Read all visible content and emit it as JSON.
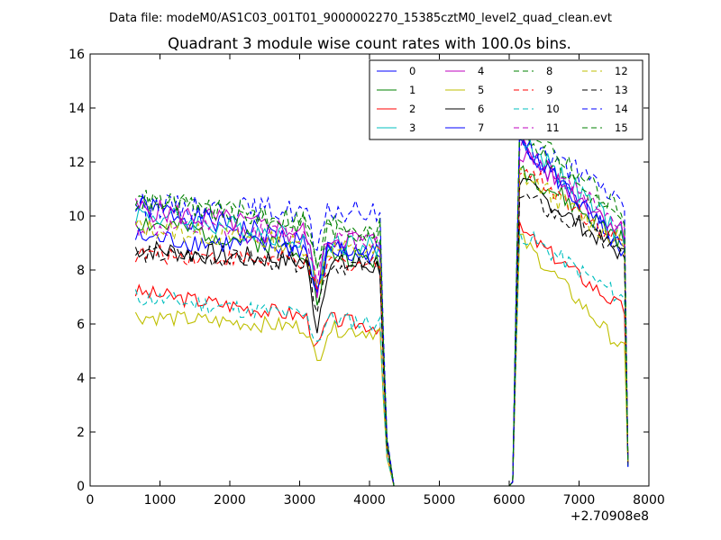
{
  "header": {
    "data_file": "Data file: modeM0/AS1C03_001T01_9000002270_15385cztM0_level2_quad_clean.evt"
  },
  "chart_data": {
    "type": "line",
    "title": "Quadrant 3 module wise count rates with 100.0s bins.",
    "xlabel": "",
    "ylabel": "",
    "x_offset_label": "+2.70908e8",
    "xlim": [
      0,
      8000
    ],
    "ylim": [
      0,
      16
    ],
    "x_ticks": [
      "0",
      "1000",
      "2000",
      "3000",
      "4000",
      "5000",
      "6000",
      "7000",
      "8000"
    ],
    "y_ticks": [
      "0",
      "2",
      "4",
      "6",
      "8",
      "10",
      "12",
      "14",
      "16"
    ],
    "grid": false,
    "legend_position": "top-right",
    "series": [
      {
        "name": "0",
        "color": "#0000ff",
        "dash": "solid",
        "seed": 1,
        "segments": [
          {
            "x0": 650,
            "x1": 4150,
            "y0": 10.4,
            "y1": 8.4,
            "dip": 2.0,
            "noise": 0.45
          },
          {
            "x0": 6150,
            "x1": 7650,
            "y0": 12.6,
            "y1": 8.8,
            "noise": 0.4
          }
        ]
      },
      {
        "name": "1",
        "color": "#008000",
        "dash": "solid",
        "seed": 2,
        "segments": [
          {
            "x0": 650,
            "x1": 4150,
            "y0": 9.8,
            "y1": 8.3,
            "dip": 1.9,
            "noise": 0.4
          },
          {
            "x0": 6150,
            "x1": 7650,
            "y0": 11.8,
            "y1": 9.0,
            "noise": 0.4
          }
        ]
      },
      {
        "name": "2",
        "color": "#ff0000",
        "dash": "solid",
        "seed": 3,
        "segments": [
          {
            "x0": 650,
            "x1": 4150,
            "y0": 7.2,
            "y1": 5.9,
            "dip": 1.2,
            "noise": 0.3
          },
          {
            "x0": 6150,
            "x1": 7650,
            "y0": 9.5,
            "y1": 6.5,
            "noise": 0.3
          }
        ]
      },
      {
        "name": "3",
        "color": "#00bfbf",
        "dash": "solid",
        "seed": 4,
        "segments": [
          {
            "x0": 650,
            "x1": 4150,
            "y0": 10.1,
            "y1": 8.8,
            "dip": 1.8,
            "noise": 0.45
          },
          {
            "x0": 6150,
            "x1": 7650,
            "y0": 13.0,
            "y1": 9.2,
            "noise": 0.45
          }
        ]
      },
      {
        "name": "4",
        "color": "#bf00bf",
        "dash": "solid",
        "seed": 5,
        "segments": [
          {
            "x0": 650,
            "x1": 4150,
            "y0": 10.3,
            "y1": 9.0,
            "dip": 2.0,
            "noise": 0.45
          },
          {
            "x0": 6150,
            "x1": 7650,
            "y0": 12.4,
            "y1": 9.4,
            "noise": 0.4
          }
        ]
      },
      {
        "name": "5",
        "color": "#bfbf00",
        "dash": "solid",
        "seed": 6,
        "segments": [
          {
            "x0": 650,
            "x1": 4150,
            "y0": 6.3,
            "y1": 5.7,
            "dip": 1.3,
            "noise": 0.3
          },
          {
            "x0": 6150,
            "x1": 7650,
            "y0": 9.2,
            "y1": 5.0,
            "noise": 0.3
          }
        ]
      },
      {
        "name": "6",
        "color": "#000000",
        "dash": "solid",
        "seed": 7,
        "segments": [
          {
            "x0": 650,
            "x1": 4150,
            "y0": 8.8,
            "y1": 8.1,
            "dip": 2.4,
            "noise": 0.4
          },
          {
            "x0": 6150,
            "x1": 7650,
            "y0": 11.3,
            "y1": 8.5,
            "noise": 0.35
          }
        ]
      },
      {
        "name": "7",
        "color": "#0000ff",
        "dash": "solid",
        "seed": 8,
        "segments": [
          {
            "x0": 650,
            "x1": 4150,
            "y0": 9.2,
            "y1": 8.6,
            "dip": 1.8,
            "noise": 0.4
          },
          {
            "x0": 6150,
            "x1": 7650,
            "y0": 12.9,
            "y1": 8.6,
            "noise": 0.4
          }
        ]
      },
      {
        "name": "8",
        "color": "#008000",
        "dash": "dashed",
        "seed": 9,
        "segments": [
          {
            "x0": 650,
            "x1": 4150,
            "y0": 10.6,
            "y1": 9.3,
            "dip": 1.4,
            "noise": 0.4
          },
          {
            "x0": 6150,
            "x1": 7650,
            "y0": 13.2,
            "y1": 9.6,
            "noise": 0.4
          }
        ]
      },
      {
        "name": "9",
        "color": "#ff0000",
        "dash": "dashed",
        "seed": 10,
        "segments": [
          {
            "x0": 650,
            "x1": 4150,
            "y0": 8.6,
            "y1": 8.2,
            "dip": 1.3,
            "noise": 0.35
          },
          {
            "x0": 6150,
            "x1": 7650,
            "y0": 11.9,
            "y1": 8.9,
            "noise": 0.35
          }
        ]
      },
      {
        "name": "10",
        "color": "#00bfbf",
        "dash": "dashed",
        "seed": 11,
        "segments": [
          {
            "x0": 650,
            "x1": 4150,
            "y0": 7.0,
            "y1": 6.0,
            "dip": 0.9,
            "noise": 0.35
          },
          {
            "x0": 6150,
            "x1": 7650,
            "y0": 9.4,
            "y1": 6.9,
            "noise": 0.35
          }
        ]
      },
      {
        "name": "11",
        "color": "#bf00bf",
        "dash": "dashed",
        "seed": 12,
        "segments": [
          {
            "x0": 650,
            "x1": 4150,
            "y0": 9.6,
            "y1": 9.1,
            "dip": 1.4,
            "noise": 0.4
          },
          {
            "x0": 6150,
            "x1": 7650,
            "y0": 12.7,
            "y1": 9.6,
            "noise": 0.4
          }
        ]
      },
      {
        "name": "12",
        "color": "#bfbf00",
        "dash": "dashed",
        "seed": 13,
        "segments": [
          {
            "x0": 650,
            "x1": 4150,
            "y0": 9.6,
            "y1": 8.6,
            "dip": 1.5,
            "noise": 0.4
          },
          {
            "x0": 6150,
            "x1": 7650,
            "y0": 11.6,
            "y1": 8.9,
            "noise": 0.4
          }
        ]
      },
      {
        "name": "13",
        "color": "#000000",
        "dash": "dashed",
        "seed": 14,
        "segments": [
          {
            "x0": 650,
            "x1": 4150,
            "y0": 8.6,
            "y1": 8.1,
            "dip": 1.6,
            "noise": 0.35
          },
          {
            "x0": 6150,
            "x1": 7650,
            "y0": 10.8,
            "y1": 8.6,
            "noise": 0.35
          }
        ]
      },
      {
        "name": "14",
        "color": "#0000ff",
        "dash": "dashed",
        "seed": 15,
        "segments": [
          {
            "x0": 650,
            "x1": 4150,
            "y0": 10.4,
            "y1": 10.1,
            "dip": 1.7,
            "noise": 0.45
          },
          {
            "x0": 6150,
            "x1": 7650,
            "y0": 12.9,
            "y1": 10.5,
            "noise": 0.45
          }
        ]
      },
      {
        "name": "15",
        "color": "#008000",
        "dash": "dashed",
        "seed": 16,
        "segments": [
          {
            "x0": 650,
            "x1": 4150,
            "y0": 10.6,
            "y1": 9.5,
            "dip": 1.6,
            "noise": 0.45
          },
          {
            "x0": 6150,
            "x1": 7650,
            "y0": 13.6,
            "y1": 10.0,
            "noise": 0.45
          }
        ]
      }
    ]
  }
}
